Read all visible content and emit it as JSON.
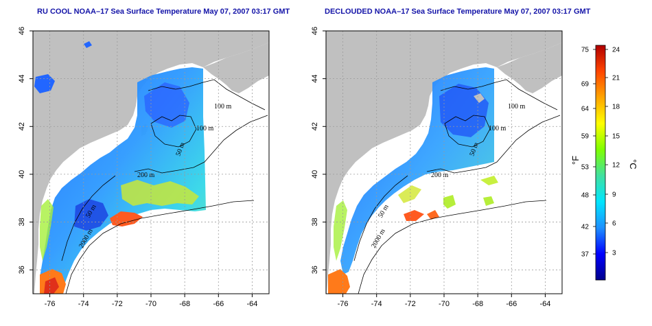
{
  "panels": [
    {
      "title": "RU COOL NOAA–17 Sea Surface Temperature May 07, 2007 03:17 GMT",
      "contour_labels": [
        "100 m",
        "100 m",
        "50 m",
        "200 m",
        "50 m",
        "2000 m"
      ],
      "x_ticks": [
        "-76",
        "-74",
        "-72",
        "-70",
        "-68",
        "-66",
        "-64"
      ],
      "y_ticks": [
        "46",
        "44",
        "42",
        "40",
        "38",
        "36"
      ]
    },
    {
      "title": "DECLOUDED NOAA–17 Sea Surface Temperature May 07, 2007 03:17 GMT",
      "contour_labels": [
        "100 m",
        "100 m",
        "50 m",
        "200 m",
        "50 m",
        "2000 m"
      ],
      "x_ticks": [
        "-76",
        "-74",
        "-72",
        "-70",
        "-68",
        "-66",
        "-64"
      ],
      "y_ticks": [
        "46",
        "44",
        "42",
        "40",
        "38",
        "36"
      ]
    }
  ],
  "colorbar": {
    "fahrenheit_labels": [
      "75",
      "69",
      "64",
      "59",
      "53",
      "48",
      "42",
      "37"
    ],
    "celsius_labels": [
      "24",
      "21",
      "18",
      "15",
      "12",
      "9",
      "6",
      "3"
    ],
    "fahrenheit_unit": "°F",
    "celsius_unit": "°C",
    "colors": [
      "#00008b",
      "#0000ff",
      "#1e90ff",
      "#00e5ff",
      "#40e0a0",
      "#7fff00",
      "#ffff00",
      "#ffa500",
      "#ff4500",
      "#b00000"
    ]
  },
  "colors": {
    "land": "#c0c0c0",
    "ocean": "#ffffff",
    "grid": "#9a9a9a",
    "title": "#1414a8"
  }
}
